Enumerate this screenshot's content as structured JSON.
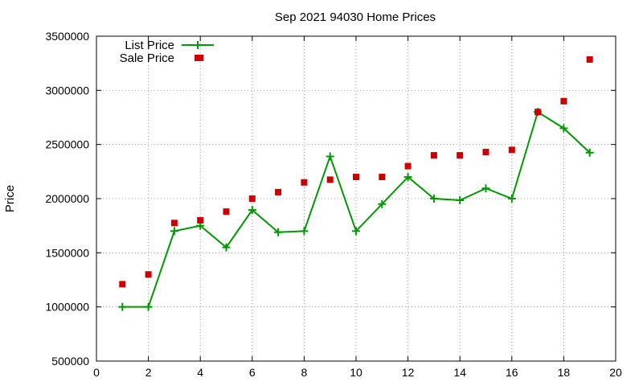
{
  "chart_data": {
    "type": "line",
    "title": "Sep 2021 94030 Home Prices",
    "xlabel": "",
    "ylabel": "Price",
    "xlim": [
      0,
      20
    ],
    "ylim": [
      500000,
      3500000
    ],
    "xticks": [
      0,
      2,
      4,
      6,
      8,
      10,
      12,
      14,
      16,
      18,
      20
    ],
    "yticks": [
      500000,
      1000000,
      1500000,
      2000000,
      2500000,
      3000000,
      3500000
    ],
    "grid": true,
    "legend_position": "top-left",
    "series": [
      {
        "name": "List Price",
        "style": "line-with-plus-markers",
        "color": "#009900",
        "x": [
          1,
          2,
          3,
          4,
          5,
          6,
          7,
          8,
          9,
          10,
          11,
          12,
          13,
          14,
          15,
          16,
          17,
          18,
          19
        ],
        "y": [
          1000000,
          1000000,
          1700000,
          1750000,
          1550000,
          1895000,
          1690000,
          1700000,
          2390000,
          1700000,
          1950000,
          2200000,
          2000000,
          1985000,
          2095000,
          2000000,
          2800000,
          2650000,
          2425000
        ]
      },
      {
        "name": "Sale Price",
        "style": "square-markers",
        "color": "#cc0000",
        "x": [
          1,
          2,
          3,
          4,
          4,
          5,
          6,
          7,
          8,
          9,
          10,
          11,
          12,
          13,
          14,
          15,
          16,
          17,
          18,
          19
        ],
        "y": [
          1210000,
          1300000,
          1775000,
          1800000,
          3300000,
          1880000,
          2000000,
          2060000,
          2150000,
          2175000,
          2200000,
          2200000,
          2300000,
          2400000,
          2400000,
          2430000,
          2450000,
          2800000,
          2900000,
          3285000
        ]
      }
    ]
  }
}
